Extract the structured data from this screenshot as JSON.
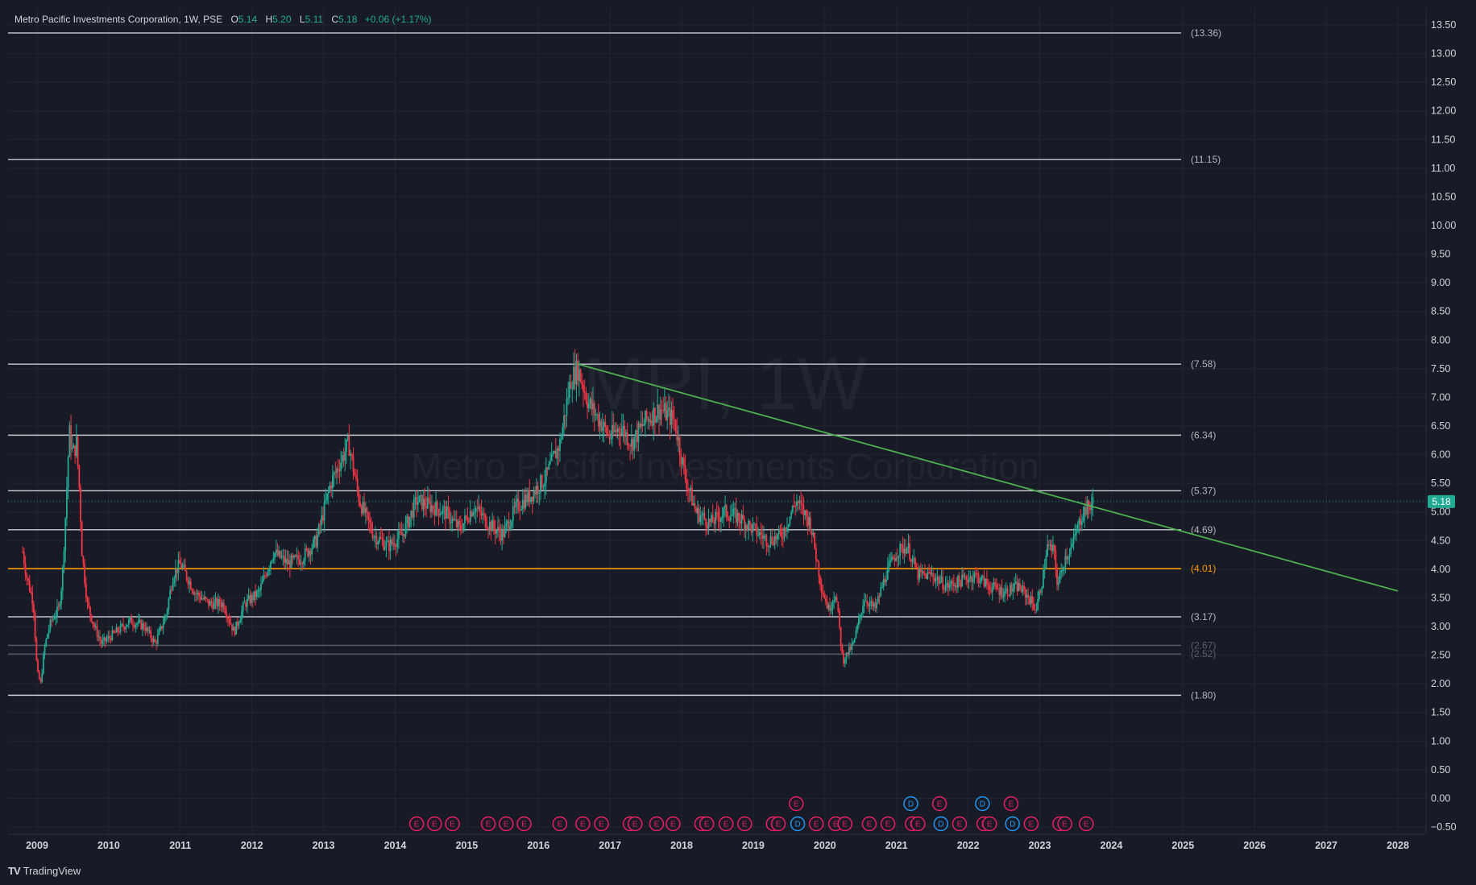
{
  "header": {
    "title": "Metro Pacific Investments Corporation, 1W, PSE",
    "open_label": "O",
    "open": "5.14",
    "high_label": "H",
    "high": "5.20",
    "low_label": "L",
    "low": "5.11",
    "close_label": "C",
    "close": "5.18",
    "change": "+0.06 (+1.17%)"
  },
  "watermark": {
    "symbol": "MPI, 1W",
    "name": "Metro Pacific Investments Corporation"
  },
  "footer": {
    "brand": "TradingView",
    "logo": "TV"
  },
  "colors": {
    "background": "#181b25",
    "text": "#d1d4dc",
    "up": "#22ab94",
    "down": "#f23645",
    "level_line": "#c8cbd3",
    "support_line": "#ff9800",
    "trendline": "#4caf50",
    "dividend_event": "#2196f3",
    "earnings_event": "#e91e63",
    "price_badge": "#22ab94"
  },
  "chart_data": {
    "type": "candlestick",
    "title": "Metro Pacific Investments Corporation, 1W, PSE",
    "interval": "1W",
    "ylim": [
      -0.5,
      13.6
    ],
    "xlim": [
      2008.8,
      2028.8
    ],
    "y_ticks": [
      "13.50",
      "13.00",
      "12.50",
      "12.00",
      "11.50",
      "11.00",
      "10.50",
      "10.00",
      "9.50",
      "9.00",
      "8.50",
      "8.00",
      "7.50",
      "7.00",
      "6.50",
      "6.00",
      "5.50",
      "5.00",
      "4.50",
      "4.00",
      "3.50",
      "3.00",
      "2.50",
      "2.00",
      "1.50",
      "1.00",
      "0.50",
      "0.00",
      "−0.50"
    ],
    "x_ticks": [
      "2009",
      "2010",
      "2011",
      "2012",
      "2013",
      "2014",
      "2015",
      "2016",
      "2017",
      "2018",
      "2019",
      "2020",
      "2021",
      "2022",
      "2023",
      "2024",
      "2025",
      "2026",
      "2027",
      "2028"
    ],
    "last_price": "5.18",
    "price_path": [
      [
        2008.8,
        4.3
      ],
      [
        2008.85,
        3.9
      ],
      [
        2008.95,
        3.4
      ],
      [
        2009.0,
        2.2
      ],
      [
        2009.05,
        2.0
      ],
      [
        2009.1,
        2.6
      ],
      [
        2009.15,
        2.9
      ],
      [
        2009.2,
        3.1
      ],
      [
        2009.3,
        3.3
      ],
      [
        2009.35,
        3.8
      ],
      [
        2009.4,
        5.0
      ],
      [
        2009.45,
        6.4
      ],
      [
        2009.5,
        6.0
      ],
      [
        2009.55,
        6.2
      ],
      [
        2009.6,
        5.2
      ],
      [
        2009.62,
        4.4
      ],
      [
        2009.7,
        3.4
      ],
      [
        2009.8,
        3.0
      ],
      [
        2009.9,
        2.7
      ],
      [
        2010.1,
        2.9
      ],
      [
        2010.3,
        3.1
      ],
      [
        2010.5,
        3.0
      ],
      [
        2010.65,
        2.7
      ],
      [
        2010.8,
        3.2
      ],
      [
        2010.9,
        3.9
      ],
      [
        2011.0,
        4.1
      ],
      [
        2011.2,
        3.6
      ],
      [
        2011.4,
        3.4
      ],
      [
        2011.6,
        3.4
      ],
      [
        2011.75,
        2.9
      ],
      [
        2011.9,
        3.4
      ],
      [
        2012.1,
        3.6
      ],
      [
        2012.3,
        4.3
      ],
      [
        2012.5,
        4.1
      ],
      [
        2012.7,
        4.2
      ],
      [
        2012.9,
        4.5
      ],
      [
        2013.1,
        5.5
      ],
      [
        2013.35,
        6.2
      ],
      [
        2013.5,
        5.2
      ],
      [
        2013.7,
        4.6
      ],
      [
        2013.9,
        4.4
      ],
      [
        2014.1,
        4.6
      ],
      [
        2014.3,
        5.2
      ],
      [
        2014.5,
        5.1
      ],
      [
        2014.7,
        5.0
      ],
      [
        2014.9,
        4.7
      ],
      [
        2015.1,
        5.1
      ],
      [
        2015.3,
        4.8
      ],
      [
        2015.5,
        4.6
      ],
      [
        2015.7,
        5.1
      ],
      [
        2015.9,
        5.3
      ],
      [
        2016.1,
        5.6
      ],
      [
        2016.3,
        6.2
      ],
      [
        2016.45,
        7.3
      ],
      [
        2016.55,
        7.5
      ],
      [
        2016.7,
        6.9
      ],
      [
        2016.85,
        6.6
      ],
      [
        2017.0,
        6.3
      ],
      [
        2017.15,
        6.5
      ],
      [
        2017.3,
        6.2
      ],
      [
        2017.5,
        6.6
      ],
      [
        2017.7,
        6.8
      ],
      [
        2017.9,
        6.6
      ],
      [
        2018.05,
        5.6
      ],
      [
        2018.2,
        5.0
      ],
      [
        2018.4,
        4.8
      ],
      [
        2018.6,
        5.0
      ],
      [
        2018.8,
        4.9
      ],
      [
        2019.0,
        4.7
      ],
      [
        2019.2,
        4.5
      ],
      [
        2019.4,
        4.6
      ],
      [
        2019.6,
        5.2
      ],
      [
        2019.8,
        4.8
      ],
      [
        2019.95,
        3.7
      ],
      [
        2020.05,
        3.3
      ],
      [
        2020.15,
        3.6
      ],
      [
        2020.25,
        2.4
      ],
      [
        2020.4,
        2.7
      ],
      [
        2020.55,
        3.5
      ],
      [
        2020.7,
        3.3
      ],
      [
        2020.85,
        3.9
      ],
      [
        2021.0,
        4.3
      ],
      [
        2021.15,
        4.4
      ],
      [
        2021.3,
        3.9
      ],
      [
        2021.5,
        3.9
      ],
      [
        2021.7,
        3.7
      ],
      [
        2021.9,
        3.8
      ],
      [
        2022.1,
        3.9
      ],
      [
        2022.3,
        3.7
      ],
      [
        2022.5,
        3.6
      ],
      [
        2022.7,
        3.7
      ],
      [
        2022.85,
        3.5
      ],
      [
        2022.95,
        3.3
      ],
      [
        2023.05,
        3.9
      ],
      [
        2023.1,
        4.4
      ],
      [
        2023.2,
        4.3
      ],
      [
        2023.25,
        3.7
      ],
      [
        2023.35,
        4.2
      ],
      [
        2023.45,
        4.4
      ],
      [
        2023.55,
        4.8
      ],
      [
        2023.6,
        5.0
      ],
      [
        2023.7,
        5.1
      ],
      [
        2023.75,
        5.18
      ]
    ],
    "levels": [
      {
        "value": 13.36,
        "label": "(13.36)",
        "color": "#c8cbd3"
      },
      {
        "value": 11.15,
        "label": "(11.15)",
        "color": "#c8cbd3"
      },
      {
        "value": 7.58,
        "label": "(7.58)",
        "color": "#c8cbd3"
      },
      {
        "value": 6.34,
        "label": "(6.34)",
        "color": "#c8cbd3"
      },
      {
        "value": 5.37,
        "label": "(5.37)",
        "color": "#c8cbd3"
      },
      {
        "value": 4.69,
        "label": "(4.69)",
        "color": "#c8cbd3"
      },
      {
        "value": 4.01,
        "label": "(4.01)",
        "color": "#ff9800"
      },
      {
        "value": 3.17,
        "label": "(3.17)",
        "color": "#c8cbd3"
      },
      {
        "value": 2.67,
        "label": "(2.67)",
        "color": "#5a5e68"
      },
      {
        "value": 2.52,
        "label": "(2.52)",
        "color": "#5a5e68"
      },
      {
        "value": 1.8,
        "label": "(1.80)",
        "color": "#c8cbd3"
      }
    ],
    "trendline": {
      "from": [
        2016.55,
        7.58
      ],
      "to": [
        2028.0,
        3.62
      ]
    },
    "events": {
      "upper": [
        {
          "t": 2019.6,
          "kind": "E"
        },
        {
          "t": 2021.2,
          "kind": "D"
        },
        {
          "t": 2021.6,
          "kind": "E"
        },
        {
          "t": 2022.2,
          "kind": "D"
        },
        {
          "t": 2022.6,
          "kind": "E"
        }
      ],
      "lower": [
        {
          "t": 2014.3,
          "kind": "E"
        },
        {
          "t": 2014.55,
          "kind": "E"
        },
        {
          "t": 2014.8,
          "kind": "E"
        },
        {
          "t": 2015.3,
          "kind": "E"
        },
        {
          "t": 2015.55,
          "kind": "E"
        },
        {
          "t": 2015.8,
          "kind": "E"
        },
        {
          "t": 2016.3,
          "kind": "E"
        },
        {
          "t": 2016.62,
          "kind": "E"
        },
        {
          "t": 2016.88,
          "kind": "E"
        },
        {
          "t": 2017.28,
          "kind": "E"
        },
        {
          "t": 2017.35,
          "kind": "E"
        },
        {
          "t": 2017.65,
          "kind": "E"
        },
        {
          "t": 2017.88,
          "kind": "E"
        },
        {
          "t": 2018.28,
          "kind": "E"
        },
        {
          "t": 2018.35,
          "kind": "E"
        },
        {
          "t": 2018.62,
          "kind": "E"
        },
        {
          "t": 2018.88,
          "kind": "E"
        },
        {
          "t": 2019.28,
          "kind": "E"
        },
        {
          "t": 2019.35,
          "kind": "E"
        },
        {
          "t": 2019.62,
          "kind": "D"
        },
        {
          "t": 2019.88,
          "kind": "E"
        },
        {
          "t": 2020.15,
          "kind": "E"
        },
        {
          "t": 2020.28,
          "kind": "E"
        },
        {
          "t": 2020.62,
          "kind": "E"
        },
        {
          "t": 2020.88,
          "kind": "E"
        },
        {
          "t": 2021.22,
          "kind": "E"
        },
        {
          "t": 2021.3,
          "kind": "E"
        },
        {
          "t": 2021.62,
          "kind": "D"
        },
        {
          "t": 2021.88,
          "kind": "E"
        },
        {
          "t": 2022.22,
          "kind": "E"
        },
        {
          "t": 2022.3,
          "kind": "E"
        },
        {
          "t": 2022.62,
          "kind": "D"
        },
        {
          "t": 2022.88,
          "kind": "E"
        },
        {
          "t": 2023.28,
          "kind": "E"
        },
        {
          "t": 2023.35,
          "kind": "E"
        },
        {
          "t": 2023.65,
          "kind": "E"
        }
      ]
    }
  }
}
